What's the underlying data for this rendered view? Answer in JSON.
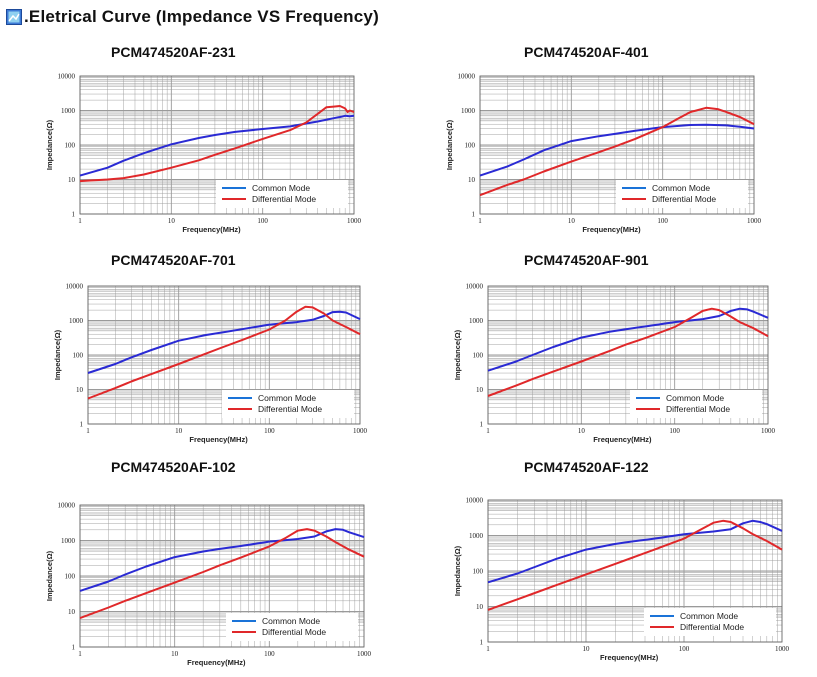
{
  "page": {
    "title": ".Eletrical Curve  (Impedance VS Frequency)",
    "icon": "document-image-icon"
  },
  "colors": {
    "common_mode": "#2a2ad4",
    "differential_mode": "#e0282a",
    "legend_common": "#1a73d8",
    "legend_differential": "#e0282a",
    "grid": "#9a9a9a",
    "band": "#e7e7e7"
  },
  "chart_data": [
    {
      "type": "line",
      "title": "PCM474520AF-231",
      "xlabel": "Frequency(MHz)",
      "ylabel": "Impedance(Ω)",
      "x_scale": "log",
      "y_scale": "log",
      "xlim": [
        1,
        1000
      ],
      "ylim": [
        1,
        10000
      ],
      "x_ticks": [
        "1",
        "10",
        "100",
        "1000"
      ],
      "y_ticks": [
        "1",
        "10",
        "100",
        "1000",
        "10000"
      ],
      "grid": true,
      "legend_position": "bottom-right",
      "series": [
        {
          "name": "Common Mode",
          "color_key": "common_mode",
          "points": [
            [
              1,
              13
            ],
            [
              2,
              22
            ],
            [
              3,
              35
            ],
            [
              5,
              58
            ],
            [
              10,
              105
            ],
            [
              20,
              160
            ],
            [
              30,
              195
            ],
            [
              50,
              240
            ],
            [
              100,
              290
            ],
            [
              200,
              345
            ],
            [
              400,
              480
            ],
            [
              600,
              600
            ],
            [
              700,
              650
            ],
            [
              800,
              700
            ],
            [
              900,
              680
            ],
            [
              1000,
              700
            ]
          ]
        },
        {
          "name": "Differential Mode",
          "color_key": "differential_mode",
          "points": [
            [
              1,
              9
            ],
            [
              2,
              10
            ],
            [
              3,
              11
            ],
            [
              5,
              14
            ],
            [
              10,
              22
            ],
            [
              20,
              36
            ],
            [
              30,
              52
            ],
            [
              50,
              80
            ],
            [
              100,
              150
            ],
            [
              200,
              270
            ],
            [
              300,
              450
            ],
            [
              400,
              800
            ],
            [
              500,
              1250
            ],
            [
              600,
              1300
            ],
            [
              700,
              1350
            ],
            [
              800,
              1150
            ],
            [
              850,
              900
            ],
            [
              900,
              1000
            ],
            [
              1000,
              900
            ]
          ]
        }
      ]
    },
    {
      "type": "line",
      "title": "PCM474520AF-401",
      "xlabel": "Frequency(MHz)",
      "ylabel": "Impedance(Ω)",
      "x_scale": "log",
      "y_scale": "log",
      "xlim": [
        1,
        1000
      ],
      "ylim": [
        1,
        10000
      ],
      "x_ticks": [
        "1",
        "10",
        "100",
        "1000"
      ],
      "y_ticks": [
        "1",
        "10",
        "100",
        "1000",
        "10000"
      ],
      "grid": true,
      "legend_position": "bottom-right",
      "series": [
        {
          "name": "Common Mode",
          "color_key": "common_mode",
          "points": [
            [
              1,
              13
            ],
            [
              2,
              24
            ],
            [
              3,
              38
            ],
            [
              5,
              70
            ],
            [
              10,
              130
            ],
            [
              20,
              180
            ],
            [
              30,
              210
            ],
            [
              50,
              260
            ],
            [
              100,
              330
            ],
            [
              200,
              380
            ],
            [
              300,
              385
            ],
            [
              500,
              370
            ],
            [
              700,
              340
            ],
            [
              1000,
              300
            ]
          ]
        },
        {
          "name": "Differential Mode",
          "color_key": "differential_mode",
          "points": [
            [
              1,
              3.5
            ],
            [
              2,
              7
            ],
            [
              3,
              10
            ],
            [
              5,
              17
            ],
            [
              10,
              33
            ],
            [
              20,
              62
            ],
            [
              30,
              90
            ],
            [
              50,
              150
            ],
            [
              100,
              330
            ],
            [
              150,
              600
            ],
            [
              200,
              900
            ],
            [
              300,
              1200
            ],
            [
              400,
              1100
            ],
            [
              500,
              900
            ],
            [
              700,
              650
            ],
            [
              1000,
              400
            ]
          ]
        }
      ]
    },
    {
      "type": "line",
      "title": "PCM474520AF-701",
      "xlabel": "Frequency(MHz)",
      "ylabel": "Impedance(Ω)",
      "x_scale": "log",
      "y_scale": "log",
      "xlim": [
        1,
        1000
      ],
      "ylim": [
        1,
        10000
      ],
      "x_ticks": [
        "1",
        "10",
        "100",
        "1000"
      ],
      "y_ticks": [
        "1",
        "10",
        "100",
        "1000",
        "10000"
      ],
      "grid": true,
      "legend_position": "bottom-right",
      "series": [
        {
          "name": "Common Mode",
          "color_key": "common_mode",
          "points": [
            [
              1,
              30
            ],
            [
              2,
              55
            ],
            [
              3,
              85
            ],
            [
              5,
              140
            ],
            [
              10,
              260
            ],
            [
              20,
              380
            ],
            [
              30,
              450
            ],
            [
              50,
              560
            ],
            [
              100,
              760
            ],
            [
              200,
              900
            ],
            [
              300,
              1050
            ],
            [
              400,
              1350
            ],
            [
              500,
              1750
            ],
            [
              600,
              1800
            ],
            [
              700,
              1700
            ],
            [
              1000,
              1100
            ]
          ]
        },
        {
          "name": "Differential Mode",
          "color_key": "differential_mode",
          "points": [
            [
              1,
              5.5
            ],
            [
              2,
              11
            ],
            [
              3,
              17
            ],
            [
              5,
              28
            ],
            [
              10,
              55
            ],
            [
              20,
              110
            ],
            [
              30,
              165
            ],
            [
              50,
              270
            ],
            [
              100,
              550
            ],
            [
              150,
              1000
            ],
            [
              200,
              1800
            ],
            [
              250,
              2500
            ],
            [
              300,
              2400
            ],
            [
              400,
              1600
            ],
            [
              500,
              1000
            ],
            [
              700,
              650
            ],
            [
              1000,
              400
            ]
          ]
        }
      ]
    },
    {
      "type": "line",
      "title": "PCM474520AF-901",
      "xlabel": "Frequency(MHz)",
      "ylabel": "Impedance(Ω)",
      "x_scale": "log",
      "y_scale": "log",
      "xlim": [
        1,
        1000
      ],
      "ylim": [
        1,
        10000
      ],
      "x_ticks": [
        "1",
        "10",
        "100",
        "1000"
      ],
      "y_ticks": [
        "1",
        "10",
        "100",
        "1000",
        "10000"
      ],
      "grid": true,
      "legend_position": "bottom-right",
      "series": [
        {
          "name": "Common Mode",
          "color_key": "common_mode",
          "points": [
            [
              1,
              35
            ],
            [
              2,
              65
            ],
            [
              3,
              100
            ],
            [
              5,
              170
            ],
            [
              10,
              320
            ],
            [
              20,
              470
            ],
            [
              30,
              560
            ],
            [
              50,
              680
            ],
            [
              100,
              900
            ],
            [
              200,
              1100
            ],
            [
              300,
              1350
            ],
            [
              400,
              1900
            ],
            [
              500,
              2200
            ],
            [
              600,
              2100
            ],
            [
              700,
              1800
            ],
            [
              1000,
              1200
            ]
          ]
        },
        {
          "name": "Differential Mode",
          "color_key": "differential_mode",
          "points": [
            [
              1,
              6.5
            ],
            [
              2,
              13
            ],
            [
              3,
              20
            ],
            [
              5,
              33
            ],
            [
              10,
              65
            ],
            [
              20,
              130
            ],
            [
              30,
              200
            ],
            [
              50,
              320
            ],
            [
              100,
              650
            ],
            [
              150,
              1200
            ],
            [
              200,
              1900
            ],
            [
              250,
              2200
            ],
            [
              300,
              2000
            ],
            [
              400,
              1300
            ],
            [
              500,
              900
            ],
            [
              700,
              600
            ],
            [
              1000,
              350
            ]
          ]
        }
      ]
    },
    {
      "type": "line",
      "title": "PCM474520AF-102",
      "xlabel": "Frequency(MHz)",
      "ylabel": "Impedance(Ω)",
      "x_scale": "log",
      "y_scale": "log",
      "xlim": [
        1,
        1000
      ],
      "ylim": [
        1,
        10000
      ],
      "x_ticks": [
        "1",
        "10",
        "100",
        "1000"
      ],
      "y_ticks": [
        "1",
        "10",
        "100",
        "1000",
        "10000"
      ],
      "grid": true,
      "legend_position": "bottom-right",
      "series": [
        {
          "name": "Common Mode",
          "color_key": "common_mode",
          "points": [
            [
              1,
              38
            ],
            [
              2,
              70
            ],
            [
              3,
              110
            ],
            [
              5,
              185
            ],
            [
              10,
              340
            ],
            [
              20,
              490
            ],
            [
              30,
              580
            ],
            [
              50,
              700
            ],
            [
              100,
              930
            ],
            [
              200,
              1100
            ],
            [
              300,
              1300
            ],
            [
              400,
              1800
            ],
            [
              500,
              2100
            ],
            [
              600,
              2000
            ],
            [
              700,
              1700
            ],
            [
              1000,
              1250
            ]
          ]
        },
        {
          "name": "Differential Mode",
          "color_key": "differential_mode",
          "points": [
            [
              1,
              6.5
            ],
            [
              2,
              13
            ],
            [
              3,
              20
            ],
            [
              5,
              33
            ],
            [
              10,
              65
            ],
            [
              20,
              130
            ],
            [
              30,
              200
            ],
            [
              50,
              330
            ],
            [
              100,
              680
            ],
            [
              150,
              1200
            ],
            [
              200,
              1900
            ],
            [
              250,
              2100
            ],
            [
              300,
              1900
            ],
            [
              400,
              1300
            ],
            [
              500,
              900
            ],
            [
              700,
              550
            ],
            [
              1000,
              350
            ]
          ]
        }
      ]
    },
    {
      "type": "line",
      "title": "PCM474520AF-122",
      "xlabel": "Frequency(MHz)",
      "ylabel": "Impedance(Ω)",
      "x_scale": "log",
      "y_scale": "log",
      "xlim": [
        1,
        1000
      ],
      "ylim": [
        1,
        10000
      ],
      "x_ticks": [
        "1",
        "10",
        "100",
        "1000"
      ],
      "y_ticks": [
        "1",
        "10",
        "100",
        "1000",
        "10000"
      ],
      "grid": true,
      "legend_position": "bottom-right",
      "series": [
        {
          "name": "Common Mode",
          "color_key": "common_mode",
          "points": [
            [
              1,
              48
            ],
            [
              2,
              85
            ],
            [
              3,
              130
            ],
            [
              5,
              220
            ],
            [
              10,
              400
            ],
            [
              20,
              580
            ],
            [
              30,
              680
            ],
            [
              50,
              820
            ],
            [
              100,
              1080
            ],
            [
              200,
              1300
            ],
            [
              300,
              1500
            ],
            [
              400,
              2200
            ],
            [
              500,
              2600
            ],
            [
              600,
              2400
            ],
            [
              700,
              2100
            ],
            [
              1000,
              1350
            ]
          ]
        },
        {
          "name": "Differential Mode",
          "color_key": "differential_mode",
          "points": [
            [
              1,
              8
            ],
            [
              2,
              16
            ],
            [
              3,
              24
            ],
            [
              5,
              40
            ],
            [
              10,
              80
            ],
            [
              20,
              160
            ],
            [
              30,
              240
            ],
            [
              50,
              400
            ],
            [
              100,
              820
            ],
            [
              150,
              1500
            ],
            [
              200,
              2300
            ],
            [
              250,
              2600
            ],
            [
              300,
              2400
            ],
            [
              400,
              1600
            ],
            [
              500,
              1100
            ],
            [
              700,
              700
            ],
            [
              1000,
              400
            ]
          ]
        }
      ]
    }
  ]
}
